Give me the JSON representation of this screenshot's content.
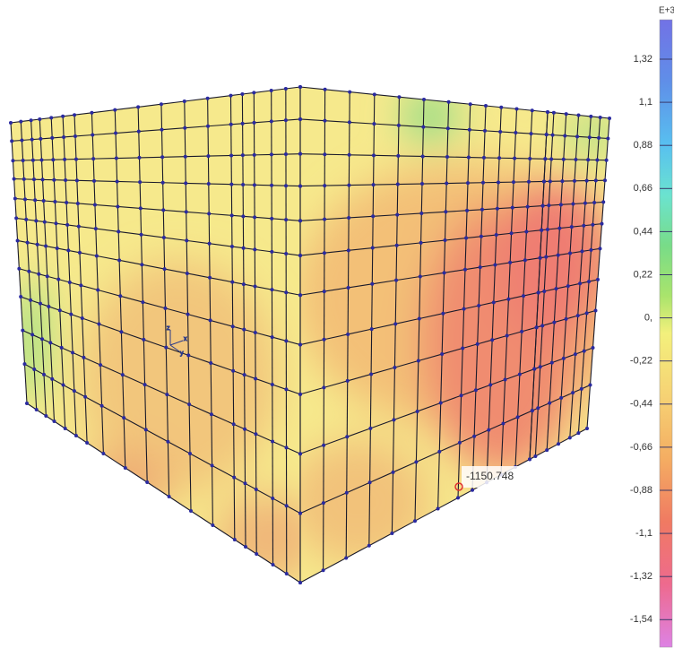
{
  "legend": {
    "exponent": "E+3",
    "labels": [
      "1,32",
      "1,1",
      "0,88",
      "0,66",
      "0,44",
      "0,22",
      "0,",
      "-0,22",
      "-0,44",
      "-0,66",
      "-0,88",
      "-1,1",
      "-1,32",
      "-1,54"
    ]
  },
  "annotation": {
    "text": "-1150.748"
  },
  "triad": {
    "labels": [
      "z",
      "x",
      "y"
    ]
  }
}
